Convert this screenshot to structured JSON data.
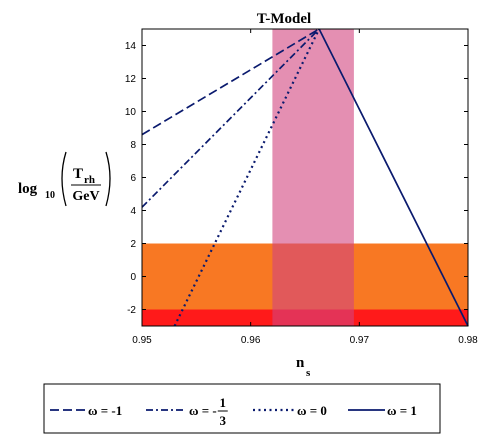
{
  "chart_data": {
    "type": "line",
    "title": "T-Model",
    "xlabel": {
      "main": "n",
      "sub": "s"
    },
    "ylabel": {
      "prefix": "log",
      "prefix_sub": "10",
      "num_main": "T",
      "num_sub": "rh",
      "den": "GeV"
    },
    "xlim": [
      0.95,
      0.98
    ],
    "ylim": [
      -3,
      15
    ],
    "xticks": [
      "0.95",
      "0.96",
      "0.97",
      "0.98"
    ],
    "yticks": [
      "-2",
      "0",
      "2",
      "4",
      "6",
      "8",
      "10",
      "12",
      "14"
    ],
    "bands": [
      {
        "orientation": "horizontal",
        "from": -3,
        "to": -2,
        "color": "#ff1a1a"
      },
      {
        "orientation": "horizontal",
        "from": -2,
        "to": 2,
        "color": "#f87823"
      },
      {
        "orientation": "vertical",
        "from": 0.962,
        "to": 0.9695,
        "color": "#d2457f",
        "opacity": 0.6
      }
    ],
    "series": [
      {
        "name": "ω = -1",
        "dash": "dash",
        "color": "#0a1a6e",
        "x": [
          0.95,
          0.9663
        ],
        "y": [
          8.6,
          15
        ]
      },
      {
        "name": "ω = -1/3",
        "dash": "dashdot",
        "color": "#0a1a6e",
        "x": [
          0.95,
          0.9663
        ],
        "y": [
          4.2,
          15
        ]
      },
      {
        "name": "ω = 0",
        "dash": "dot",
        "color": "#0a1a6e",
        "x": [
          0.953,
          0.9663
        ],
        "y": [
          -3,
          15
        ]
      },
      {
        "name": "ω = 1",
        "dash": "solid",
        "color": "#0a1a6e",
        "x": [
          0.9663,
          0.98
        ],
        "y": [
          15,
          -3
        ]
      }
    ],
    "legend": {
      "placement": "bottom",
      "entries": [
        {
          "lhs": "ω = -",
          "value": "1"
        },
        {
          "lhs": "ω = -",
          "num": "1",
          "den": "3"
        },
        {
          "lhs": "ω = ",
          "value": "0"
        },
        {
          "lhs": "ω = ",
          "value": "1"
        }
      ]
    }
  }
}
